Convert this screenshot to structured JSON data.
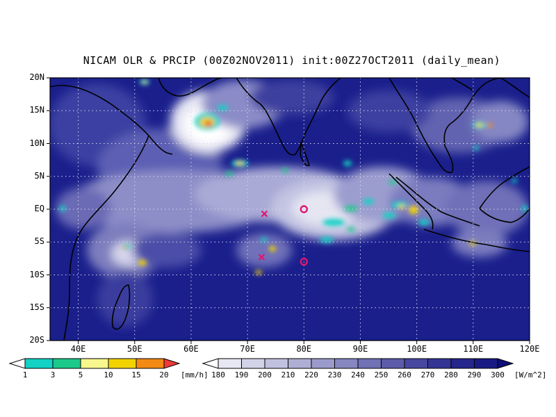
{
  "title": "NICAM OLR & PRCIP (00Z02NOV2011) init:00Z27OCT2011 (daily_mean)",
  "map": {
    "lon_range": [
      35,
      120
    ],
    "lat_range": [
      -20,
      20
    ],
    "lat_ticks": [
      {
        "lat": 20,
        "label": "20N"
      },
      {
        "lat": 15,
        "label": "15N"
      },
      {
        "lat": 10,
        "label": "10N"
      },
      {
        "lat": 5,
        "label": "5N"
      },
      {
        "lat": 0,
        "label": "EQ"
      },
      {
        "lat": -5,
        "label": "5S"
      },
      {
        "lat": -10,
        "label": "10S"
      },
      {
        "lat": -15,
        "label": "15S"
      },
      {
        "lat": -20,
        "label": "20S"
      }
    ],
    "lon_ticks": [
      {
        "lon": 40,
        "label": "40E"
      },
      {
        "lon": 50,
        "label": "50E"
      },
      {
        "lon": 60,
        "label": "60E"
      },
      {
        "lon": 70,
        "label": "70E"
      },
      {
        "lon": 80,
        "label": "80E"
      },
      {
        "lon": 90,
        "label": "90E"
      },
      {
        "lon": 100,
        "label": "100E"
      },
      {
        "lon": 110,
        "label": "110E"
      },
      {
        "lon": 120,
        "label": "120E"
      }
    ],
    "grid": "dotted",
    "background_color": "#1a1f8c",
    "markers": [
      {
        "type": "x",
        "lon": 73,
        "lat": -0.7,
        "color": "#e0156e"
      },
      {
        "type": "o",
        "lon": 80,
        "lat": 0,
        "color": "#e0156e"
      },
      {
        "type": "x",
        "lon": 72.5,
        "lat": -7.3,
        "color": "#e0156e"
      },
      {
        "type": "o",
        "lon": 80,
        "lat": -8,
        "color": "#e0156e"
      }
    ]
  },
  "precip_colorbar": {
    "labels": [
      "1",
      "3",
      "5",
      "10",
      "15",
      "20"
    ],
    "colors": [
      "#ffffff",
      "#12d1c5",
      "#1bc98a",
      "#f7f78e",
      "#f2d300",
      "#f28a13",
      "#ee3a3a"
    ],
    "unit": "[mm/h]"
  },
  "olr_colorbar": {
    "labels": [
      "180",
      "190",
      "200",
      "210",
      "220",
      "230",
      "240",
      "250",
      "260",
      "270",
      "280",
      "290",
      "300"
    ],
    "colors": [
      "#ffffff",
      "#e7e7f3",
      "#d3d3e8",
      "#c1c1df",
      "#aeaed5",
      "#9b9bcb",
      "#8686c0",
      "#7171b6",
      "#5c5caa",
      "#4747a0",
      "#343495",
      "#25258c",
      "#1a1a84",
      "#0e0e78"
    ],
    "unit": "[W/m^2]"
  }
}
